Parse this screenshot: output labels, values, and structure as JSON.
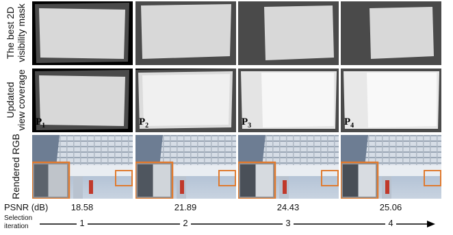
{
  "row_labels": {
    "row1": [
      "The best 2D",
      "visibility mask"
    ],
    "row2": [
      "Updated",
      "view coverage"
    ],
    "row3": [
      "Rendered RGB"
    ]
  },
  "panel_labels": [
    {
      "base": "P",
      "sub": "1"
    },
    {
      "base": "P",
      "sub": "2"
    },
    {
      "base": "P",
      "sub": "3"
    },
    {
      "base": "P",
      "sub": "4"
    }
  ],
  "psnr": {
    "label": "PSNR (dB)",
    "values": [
      "18.58",
      "21.89",
      "24.43",
      "25.06"
    ]
  },
  "selection": {
    "label_line1": "Selection",
    "label_line2": "iteration",
    "iterations": [
      "1",
      "2",
      "3",
      "4"
    ]
  },
  "colors": {
    "mask_bg": "#000000",
    "mask_mid": "#4a4a4a",
    "mask_light": "#d8d8d8",
    "coverage_white": "#f7f7f7",
    "zoom_box": "#e07a2e"
  }
}
